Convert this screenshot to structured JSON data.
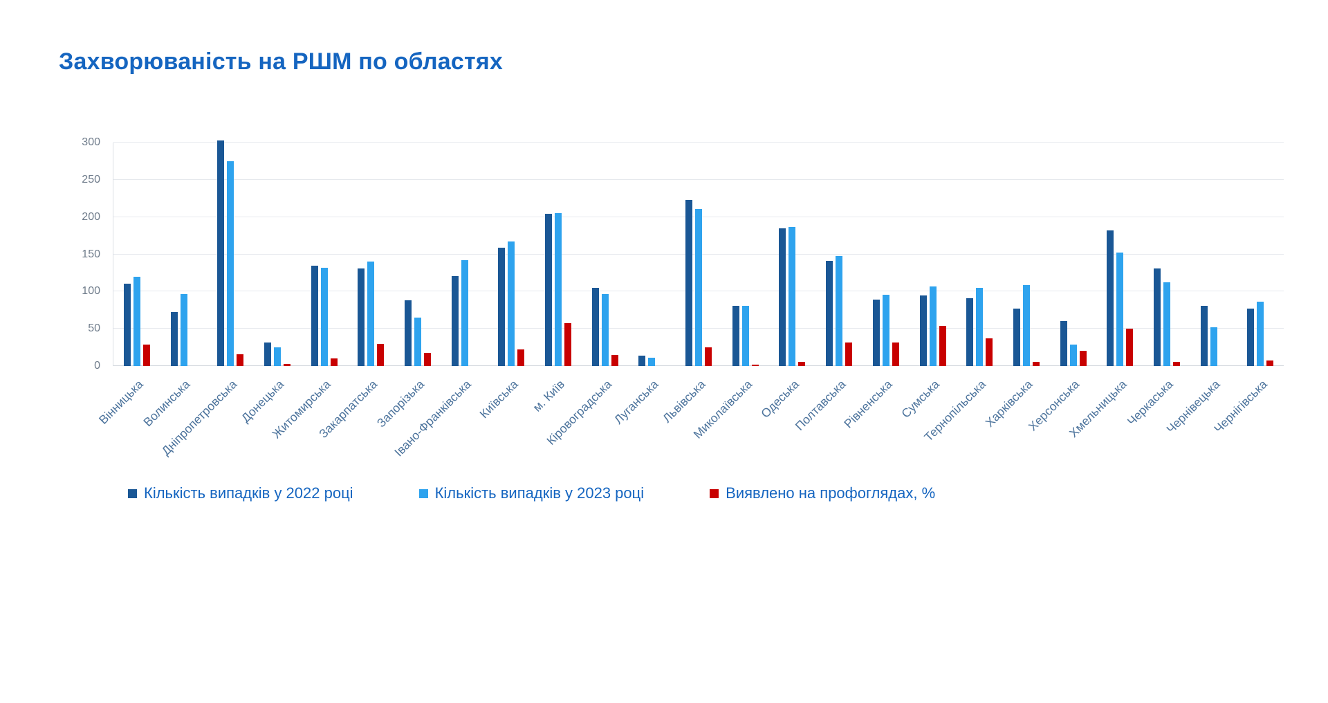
{
  "title": "Захворюваність на РШМ по областях",
  "colors": {
    "title": "#1565C0",
    "series_2022": "#1A5795",
    "series_2023": "#2EA3EE",
    "series_pct": "#C80000",
    "y_axis_label": "#6E7B8A",
    "x_axis_label": "#4C739C",
    "legend_text": "#1565C0",
    "gridline": "#E6E9ED",
    "background": "#FFFFFF"
  },
  "chart_data": {
    "type": "bar",
    "title": "Захворюваність на РШМ по областях",
    "xlabel": "",
    "ylabel": "",
    "ylim": [
      0,
      300
    ],
    "yticks": [
      0,
      50,
      100,
      150,
      200,
      250,
      300
    ],
    "grid": true,
    "legend_position": "bottom",
    "categories": [
      "Вінницька",
      "Волинська",
      "Дніпропетровська",
      "Донецька",
      "Житомирська",
      "Закарпатська",
      "Запорізька",
      "Івано-Франківська",
      "Київська",
      "м. Київ",
      "Кіровоградська",
      "Луганська",
      "Львівська",
      "Миколаївська",
      "Одеська",
      "Полтавська",
      "Рівненська",
      "Сумська",
      "Тернопільська",
      "Харківська",
      "Херсонська",
      "Хмельницька",
      "Черкаська",
      "Чернівецька",
      "Чернігівська"
    ],
    "series": [
      {
        "key": "cases-2022",
        "name": "Кількість випадків у 2022 році",
        "color": "#1A5795",
        "values": [
          111,
          72,
          303,
          32,
          135,
          131,
          88,
          121,
          159,
          204,
          105,
          14,
          223,
          81,
          185,
          141,
          89,
          95,
          91,
          77,
          60,
          182,
          131,
          81,
          77
        ]
      },
      {
        "key": "cases-2023",
        "name": "Кількість випадків у 2023 році",
        "color": "#2EA3EE",
        "values": [
          120,
          97,
          275,
          25,
          132,
          140,
          65,
          142,
          167,
          205,
          97,
          11,
          211,
          81,
          187,
          148,
          96,
          107,
          105,
          109,
          29,
          152,
          112,
          52,
          86
        ]
      },
      {
        "key": "screening-pct",
        "name": "Виявлено на профоглядах, %",
        "color": "#C80000",
        "values": [
          29,
          0,
          16,
          3,
          10,
          30,
          18,
          0,
          22,
          58,
          15,
          0,
          25,
          2,
          6,
          32,
          32,
          54,
          37,
          6,
          20,
          50,
          6,
          0,
          7
        ]
      }
    ]
  }
}
